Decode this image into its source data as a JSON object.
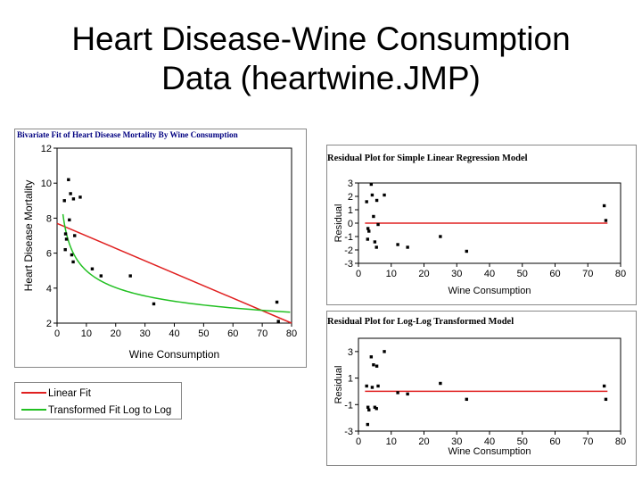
{
  "slide": {
    "title_line1": "Heart Disease-Wine Consumption",
    "title_line2": "Data (heartwine.JMP)"
  },
  "colors": {
    "linear_fit": "#e02020",
    "transformed_fit": "#22c022",
    "points": "#000000",
    "zero_line": "#e02020",
    "frame": "#888888",
    "title_blue": "#000080"
  },
  "legend": [
    {
      "label": "Linear Fit",
      "color": "#e02020"
    },
    {
      "label": "Transformed Fit Log to Log",
      "color": "#22c022"
    }
  ],
  "chart_data": [
    {
      "id": "bivariate",
      "type": "scatter",
      "title": "Bivariate Fit of Heart Disease Mortality By Wine Consumption",
      "xlabel": "Wine Consumption",
      "ylabel": "Heart Disease Mortality",
      "xlim": [
        0,
        80
      ],
      "ylim": [
        2,
        12
      ],
      "xticks": [
        0,
        10,
        20,
        30,
        40,
        50,
        60,
        70,
        80
      ],
      "yticks": [
        2,
        4,
        6,
        8,
        10,
        12
      ],
      "points": [
        {
          "x": 2.5,
          "y": 9.0
        },
        {
          "x": 2.9,
          "y": 7.1
        },
        {
          "x": 3.2,
          "y": 6.8
        },
        {
          "x": 2.8,
          "y": 6.2
        },
        {
          "x": 3.9,
          "y": 10.2
        },
        {
          "x": 4.2,
          "y": 7.9
        },
        {
          "x": 4.6,
          "y": 9.4
        },
        {
          "x": 5.0,
          "y": 5.9
        },
        {
          "x": 5.6,
          "y": 9.1
        },
        {
          "x": 5.5,
          "y": 5.5
        },
        {
          "x": 6.0,
          "y": 7.0
        },
        {
          "x": 7.9,
          "y": 9.2
        },
        {
          "x": 12.0,
          "y": 5.1
        },
        {
          "x": 15.0,
          "y": 4.7
        },
        {
          "x": 25.0,
          "y": 4.7
        },
        {
          "x": 33.0,
          "y": 3.1
        },
        {
          "x": 75.0,
          "y": 3.2
        },
        {
          "x": 75.5,
          "y": 2.1
        }
      ],
      "linear_fit": {
        "x0": 0,
        "y0": 7.7,
        "x1": 80,
        "y1": 2.0
      },
      "loglog_fit": {
        "a": 10.2,
        "b": -0.31,
        "x_from": 2.0,
        "x_to": 79.5
      }
    },
    {
      "id": "residual-linear",
      "type": "scatter",
      "title": "Residual Plot for Simple Linear Regression Model",
      "xlabel": "Wine Consumption",
      "ylabel": "Residual",
      "xlim": [
        0,
        80
      ],
      "ylim": [
        -3,
        3
      ],
      "xticks": [
        0,
        10,
        20,
        30,
        40,
        50,
        60,
        70,
        80
      ],
      "yticks": [
        -3,
        -2,
        -1,
        0,
        1,
        2,
        3
      ],
      "zero_line": 0,
      "points": [
        {
          "x": 2.5,
          "y": 1.6
        },
        {
          "x": 2.9,
          "y": -0.4
        },
        {
          "x": 3.2,
          "y": -0.6
        },
        {
          "x": 2.8,
          "y": -1.2
        },
        {
          "x": 3.9,
          "y": 2.9
        },
        {
          "x": 4.2,
          "y": 2.1
        },
        {
          "x": 4.6,
          "y": 0.5
        },
        {
          "x": 5.0,
          "y": -1.4
        },
        {
          "x": 5.6,
          "y": 1.7
        },
        {
          "x": 5.5,
          "y": -1.8
        },
        {
          "x": 6.0,
          "y": -0.1
        },
        {
          "x": 7.9,
          "y": 2.1
        },
        {
          "x": 12.0,
          "y": -1.6
        },
        {
          "x": 15.0,
          "y": -1.8
        },
        {
          "x": 25.0,
          "y": -1.0
        },
        {
          "x": 33.0,
          "y": -2.1
        },
        {
          "x": 75.0,
          "y": 1.3
        },
        {
          "x": 75.5,
          "y": 0.2
        }
      ]
    },
    {
      "id": "residual-loglog",
      "type": "scatter",
      "title": "Residual Plot for Log-Log Transformed Model",
      "xlabel": "Wine Consumption",
      "ylabel": "Residual",
      "xlim": [
        0,
        80
      ],
      "ylim": [
        -3,
        4
      ],
      "xticks": [
        0,
        10,
        20,
        30,
        40,
        50,
        60,
        70,
        80
      ],
      "yticks": [
        -3,
        -1,
        1,
        3
      ],
      "zero_line": 0,
      "points": [
        {
          "x": 2.5,
          "y": 0.4
        },
        {
          "x": 2.9,
          "y": -1.2
        },
        {
          "x": 3.2,
          "y": -1.4
        },
        {
          "x": 2.8,
          "y": -2.5
        },
        {
          "x": 3.9,
          "y": 2.6
        },
        {
          "x": 4.2,
          "y": 0.3
        },
        {
          "x": 4.6,
          "y": 2.0
        },
        {
          "x": 5.0,
          "y": -1.2
        },
        {
          "x": 5.6,
          "y": 1.9
        },
        {
          "x": 5.5,
          "y": -1.3
        },
        {
          "x": 6.0,
          "y": 0.4
        },
        {
          "x": 7.9,
          "y": 3.0
        },
        {
          "x": 12.0,
          "y": -0.1
        },
        {
          "x": 15.0,
          "y": -0.2
        },
        {
          "x": 25.0,
          "y": 0.6
        },
        {
          "x": 33.0,
          "y": -0.6
        },
        {
          "x": 75.0,
          "y": 0.4
        },
        {
          "x": 75.5,
          "y": -0.6
        }
      ]
    }
  ]
}
